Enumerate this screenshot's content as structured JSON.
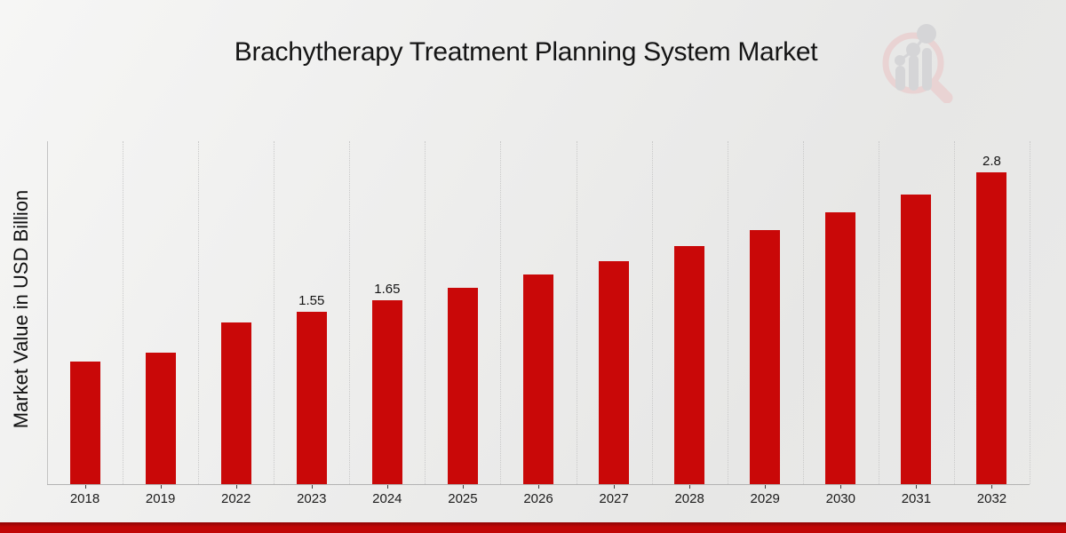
{
  "chart_data": {
    "type": "bar",
    "title": "Brachytherapy Treatment Planning System Market",
    "xlabel": "",
    "ylabel": "Market Value in USD Billion",
    "categories": [
      "2018",
      "2019",
      "2022",
      "2023",
      "2024",
      "2025",
      "2026",
      "2027",
      "2028",
      "2029",
      "2030",
      "2031",
      "2032"
    ],
    "values": [
      1.1,
      1.18,
      1.45,
      1.55,
      1.65,
      1.76,
      1.88,
      2.0,
      2.14,
      2.28,
      2.44,
      2.6,
      2.8
    ],
    "data_labels": [
      "",
      "",
      "",
      "1.55",
      "1.65",
      "",
      "",
      "",
      "",
      "",
      "",
      "",
      "2.8"
    ],
    "ylim": [
      0,
      3.08
    ],
    "grid": "vertical-dotted",
    "legend": "none",
    "bar_color": "#c90808"
  },
  "colors": {
    "bar": "#c90808",
    "bottom_strip": "#c10606",
    "background": "#ebebeb",
    "gridline": "#c9c9c9",
    "axis": "#b3b3b3",
    "text": "#151515",
    "watermark_ring": "#e9d3d3",
    "watermark_gray": "#d5d5d7"
  },
  "logo": {
    "icon": "magnifier-bar-chart-watermark"
  }
}
